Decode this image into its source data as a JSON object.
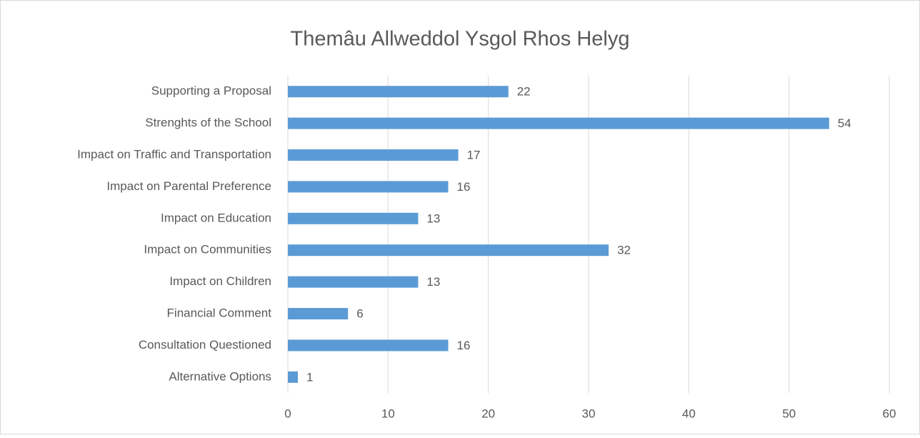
{
  "chart_data": {
    "type": "bar",
    "orientation": "horizontal",
    "title": "Themâu Allweddol Ysgol Rhos Helyg",
    "categories": [
      "Supporting a Proposal",
      "Strenghts of the School",
      "Impact on Traffic and Transportation",
      "Impact on Parental Preference",
      "Impact on Education",
      "Impact on Communities",
      "Impact on Children",
      "Financial Comment",
      "Consultation Questioned",
      "Alternative Options"
    ],
    "values": [
      22,
      54,
      17,
      16,
      13,
      32,
      13,
      6,
      16,
      1
    ],
    "color": "#5b9bd5",
    "xlim": [
      0,
      60
    ],
    "xticks": [
      0,
      10,
      20,
      30,
      40,
      50,
      60
    ],
    "grid": true
  }
}
